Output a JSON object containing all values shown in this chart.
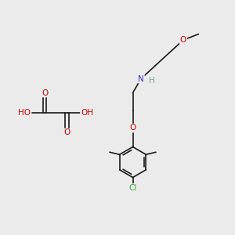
{
  "background_color": "#ebebeb",
  "figsize": [
    3.0,
    3.0
  ],
  "dpi": 100,
  "bond_color": "#1a1a1a",
  "bond_width": 1.2,
  "atom_colors": {
    "O": "#cc0000",
    "N": "#3333cc",
    "Cl": "#33aa33",
    "C": "#1a1a1a",
    "H": "#7a9a9a"
  },
  "font_size_atom": 7.5
}
